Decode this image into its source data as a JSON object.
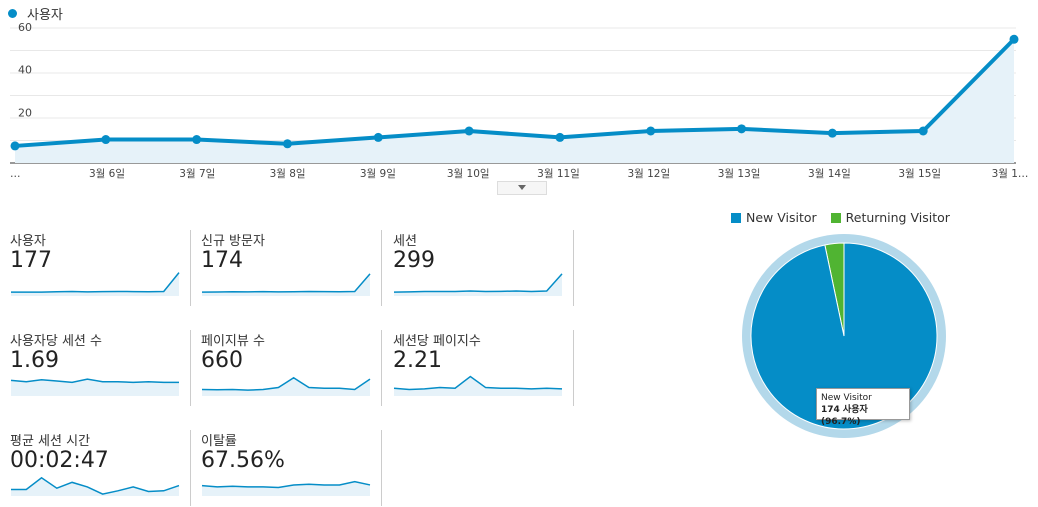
{
  "header": {
    "metric_label": "사용자",
    "series_color": "#058dc7"
  },
  "chart_data": [
    {
      "type": "area",
      "series": [
        {
          "name": "사용자",
          "values": [
            8,
            11,
            11,
            9,
            12,
            15,
            12,
            15,
            16,
            14,
            15,
            58
          ]
        }
      ],
      "x_tick_labels": [
        "…",
        "3월 6일",
        "3월 7일",
        "3월 8일",
        "3월 9일",
        "3월 10일",
        "3월 11일",
        "3월 12일",
        "3월 13일",
        "3월 14일",
        "3월 15일",
        "3월 1…"
      ],
      "y_ticks": [
        "20",
        "40",
        "60"
      ],
      "ylim": [
        0,
        60
      ],
      "grid": true
    },
    {
      "type": "pie",
      "categories": [
        "New Visitor",
        "Returning Visitor"
      ],
      "values": [
        96.7,
        3.3
      ],
      "colors": [
        "#058dc7",
        "#50b432"
      ],
      "legend_position": "top",
      "tooltip": {
        "title": "New Visitor",
        "value": "174 사용자 (96.7%)"
      }
    }
  ],
  "metrics": [
    {
      "label": "사용자",
      "value": "177",
      "spark": [
        3,
        3,
        3,
        3.3,
        3.5,
        3.2,
        3.4,
        3.5,
        3.4,
        3.3,
        3.5,
        18
      ]
    },
    {
      "label": "신규 방문자",
      "value": "174",
      "spark": [
        3,
        3.1,
        3.3,
        3.2,
        3.4,
        3.2,
        3.3,
        3.5,
        3.4,
        3.3,
        3.5,
        17
      ]
    },
    {
      "label": "세션",
      "value": "299",
      "spark": [
        3,
        3.2,
        3.5,
        3.5,
        3.5,
        3.8,
        3.5,
        3.6,
        3.8,
        3.5,
        3.8,
        17
      ]
    },
    {
      "label": "사용자당 세션 수",
      "value": "1.69",
      "spark": [
        12,
        11,
        12.5,
        11.5,
        10.5,
        13,
        11,
        11,
        10.5,
        11,
        10.5,
        10.5
      ]
    },
    {
      "label": "페이지뷰 수",
      "value": "660",
      "spark": [
        5,
        4.8,
        5,
        4.5,
        5,
        6.5,
        14,
        6.5,
        6,
        6,
        5,
        13
      ]
    },
    {
      "label": "세션당 페이지수",
      "value": "2.21",
      "spark": [
        6,
        5,
        5.5,
        6.5,
        6,
        15,
        6.5,
        6,
        6,
        5.5,
        6,
        5.5
      ]
    },
    {
      "label": "평균 세션 시간",
      "value": "00:02:47",
      "spark": [
        5,
        5,
        14,
        6,
        10.5,
        7,
        1.5,
        4,
        7,
        3.5,
        4,
        8
      ]
    },
    {
      "label": "이탈률",
      "value": "67.56%",
      "spark": [
        8,
        7,
        7.5,
        7,
        7,
        6.5,
        8.5,
        9,
        8.5,
        8.5,
        11,
        8.5
      ]
    }
  ]
}
